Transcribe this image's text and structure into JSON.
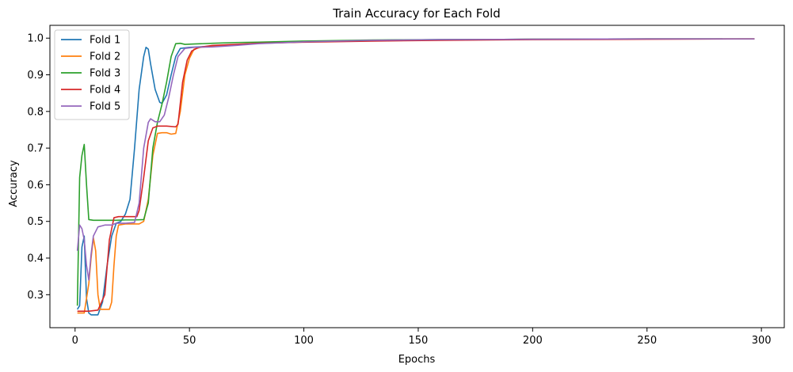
{
  "chart_data": {
    "type": "line",
    "title": "Train Accuracy for Each Fold",
    "xlabel": "Epochs",
    "ylabel": "Accuracy",
    "xlim": [
      -11,
      310
    ],
    "ylim": [
      0.21,
      1.035
    ],
    "xticks": [
      0,
      50,
      100,
      150,
      200,
      250,
      300
    ],
    "yticks": [
      0.3,
      0.4,
      0.5,
      0.6,
      0.7,
      0.8,
      0.9,
      1.0
    ],
    "ytick_labels": [
      "0.3",
      "0.4",
      "0.5",
      "0.6",
      "0.7",
      "0.8",
      "0.9",
      "1.0"
    ],
    "grid": false,
    "legend_position": "top-left",
    "series": [
      {
        "name": "Fold 1",
        "color": "#1f77b4",
        "points": [
          [
            1,
            0.26
          ],
          [
            2,
            0.27
          ],
          [
            3,
            0.43
          ],
          [
            4,
            0.46
          ],
          [
            5,
            0.29
          ],
          [
            6,
            0.25
          ],
          [
            7,
            0.245
          ],
          [
            8,
            0.245
          ],
          [
            10,
            0.245
          ],
          [
            12,
            0.28
          ],
          [
            14,
            0.38
          ],
          [
            16,
            0.46
          ],
          [
            18,
            0.495
          ],
          [
            20,
            0.5
          ],
          [
            22,
            0.52
          ],
          [
            24,
            0.56
          ],
          [
            26,
            0.7
          ],
          [
            28,
            0.86
          ],
          [
            30,
            0.95
          ],
          [
            31,
            0.975
          ],
          [
            32,
            0.97
          ],
          [
            33,
            0.93
          ],
          [
            35,
            0.86
          ],
          [
            37,
            0.825
          ],
          [
            38,
            0.822
          ],
          [
            40,
            0.845
          ],
          [
            42,
            0.9
          ],
          [
            44,
            0.95
          ],
          [
            46,
            0.972
          ],
          [
            50,
            0.975
          ],
          [
            60,
            0.978
          ],
          [
            70,
            0.982
          ],
          [
            80,
            0.986
          ],
          [
            100,
            0.99
          ],
          [
            130,
            0.994
          ],
          [
            160,
            0.996
          ],
          [
            200,
            0.997
          ],
          [
            250,
            0.998
          ],
          [
            283,
            0.998
          ]
        ]
      },
      {
        "name": "Fold 2",
        "color": "#ff7f0e",
        "points": [
          [
            1,
            0.25
          ],
          [
            4,
            0.25
          ],
          [
            6,
            0.33
          ],
          [
            7,
            0.4
          ],
          [
            8,
            0.455
          ],
          [
            9,
            0.42
          ],
          [
            10,
            0.3
          ],
          [
            11,
            0.26
          ],
          [
            13,
            0.26
          ],
          [
            15,
            0.26
          ],
          [
            16,
            0.28
          ],
          [
            17,
            0.38
          ],
          [
            18,
            0.46
          ],
          [
            19,
            0.49
          ],
          [
            22,
            0.493
          ],
          [
            25,
            0.493
          ],
          [
            28,
            0.493
          ],
          [
            30,
            0.5
          ],
          [
            32,
            0.56
          ],
          [
            34,
            0.68
          ],
          [
            36,
            0.74
          ],
          [
            38,
            0.742
          ],
          [
            40,
            0.742
          ],
          [
            42,
            0.738
          ],
          [
            44,
            0.74
          ],
          [
            46,
            0.8
          ],
          [
            48,
            0.9
          ],
          [
            50,
            0.945
          ],
          [
            52,
            0.97
          ],
          [
            55,
            0.975
          ],
          [
            60,
            0.978
          ],
          [
            70,
            0.982
          ],
          [
            80,
            0.986
          ],
          [
            100,
            0.99
          ],
          [
            130,
            0.993
          ],
          [
            160,
            0.995
          ],
          [
            200,
            0.997
          ],
          [
            250,
            0.998
          ],
          [
            297,
            0.998
          ]
        ]
      },
      {
        "name": "Fold 3",
        "color": "#2ca02c",
        "points": [
          [
            1,
            0.27
          ],
          [
            2,
            0.62
          ],
          [
            3,
            0.68
          ],
          [
            4,
            0.71
          ],
          [
            5,
            0.6
          ],
          [
            6,
            0.505
          ],
          [
            8,
            0.503
          ],
          [
            10,
            0.503
          ],
          [
            14,
            0.503
          ],
          [
            18,
            0.503
          ],
          [
            22,
            0.504
          ],
          [
            26,
            0.504
          ],
          [
            30,
            0.505
          ],
          [
            32,
            0.55
          ],
          [
            34,
            0.7
          ],
          [
            36,
            0.77
          ],
          [
            38,
            0.82
          ],
          [
            40,
            0.88
          ],
          [
            42,
            0.95
          ],
          [
            44,
            0.985
          ],
          [
            46,
            0.986
          ],
          [
            48,
            0.983
          ],
          [
            52,
            0.984
          ],
          [
            60,
            0.986
          ],
          [
            70,
            0.988
          ],
          [
            80,
            0.989
          ],
          [
            100,
            0.992
          ],
          [
            130,
            0.995
          ],
          [
            160,
            0.996
          ],
          [
            200,
            0.997
          ],
          [
            250,
            0.998
          ],
          [
            297,
            0.998
          ]
        ]
      },
      {
        "name": "Fold 4",
        "color": "#d62728",
        "points": [
          [
            1,
            0.255
          ],
          [
            3,
            0.255
          ],
          [
            6,
            0.255
          ],
          [
            10,
            0.258
          ],
          [
            13,
            0.3
          ],
          [
            15,
            0.45
          ],
          [
            17,
            0.51
          ],
          [
            19,
            0.513
          ],
          [
            22,
            0.513
          ],
          [
            25,
            0.513
          ],
          [
            27,
            0.513
          ],
          [
            28,
            0.53
          ],
          [
            30,
            0.62
          ],
          [
            32,
            0.72
          ],
          [
            34,
            0.755
          ],
          [
            36,
            0.76
          ],
          [
            40,
            0.76
          ],
          [
            44,
            0.758
          ],
          [
            45,
            0.765
          ],
          [
            47,
            0.88
          ],
          [
            49,
            0.94
          ],
          [
            51,
            0.965
          ],
          [
            54,
            0.975
          ],
          [
            60,
            0.98
          ],
          [
            70,
            0.983
          ],
          [
            80,
            0.986
          ],
          [
            100,
            0.989
          ],
          [
            130,
            0.992
          ],
          [
            160,
            0.994
          ],
          [
            200,
            0.996
          ],
          [
            250,
            0.997
          ],
          [
            297,
            0.998
          ]
        ]
      },
      {
        "name": "Fold 5",
        "color": "#9467bd",
        "points": [
          [
            1,
            0.42
          ],
          [
            2,
            0.49
          ],
          [
            3,
            0.48
          ],
          [
            4,
            0.45
          ],
          [
            5,
            0.38
          ],
          [
            6,
            0.34
          ],
          [
            7,
            0.41
          ],
          [
            8,
            0.46
          ],
          [
            10,
            0.485
          ],
          [
            13,
            0.49
          ],
          [
            16,
            0.49
          ],
          [
            18,
            0.495
          ],
          [
            22,
            0.495
          ],
          [
            26,
            0.497
          ],
          [
            28,
            0.55
          ],
          [
            30,
            0.7
          ],
          [
            32,
            0.77
          ],
          [
            33,
            0.78
          ],
          [
            35,
            0.772
          ],
          [
            37,
            0.772
          ],
          [
            39,
            0.79
          ],
          [
            41,
            0.84
          ],
          [
            43,
            0.9
          ],
          [
            45,
            0.95
          ],
          [
            48,
            0.972
          ],
          [
            52,
            0.975
          ],
          [
            60,
            0.976
          ],
          [
            70,
            0.98
          ],
          [
            80,
            0.985
          ],
          [
            100,
            0.99
          ],
          [
            130,
            0.994
          ],
          [
            160,
            0.996
          ],
          [
            200,
            0.997
          ],
          [
            250,
            0.998
          ],
          [
            297,
            0.998
          ]
        ]
      }
    ]
  }
}
